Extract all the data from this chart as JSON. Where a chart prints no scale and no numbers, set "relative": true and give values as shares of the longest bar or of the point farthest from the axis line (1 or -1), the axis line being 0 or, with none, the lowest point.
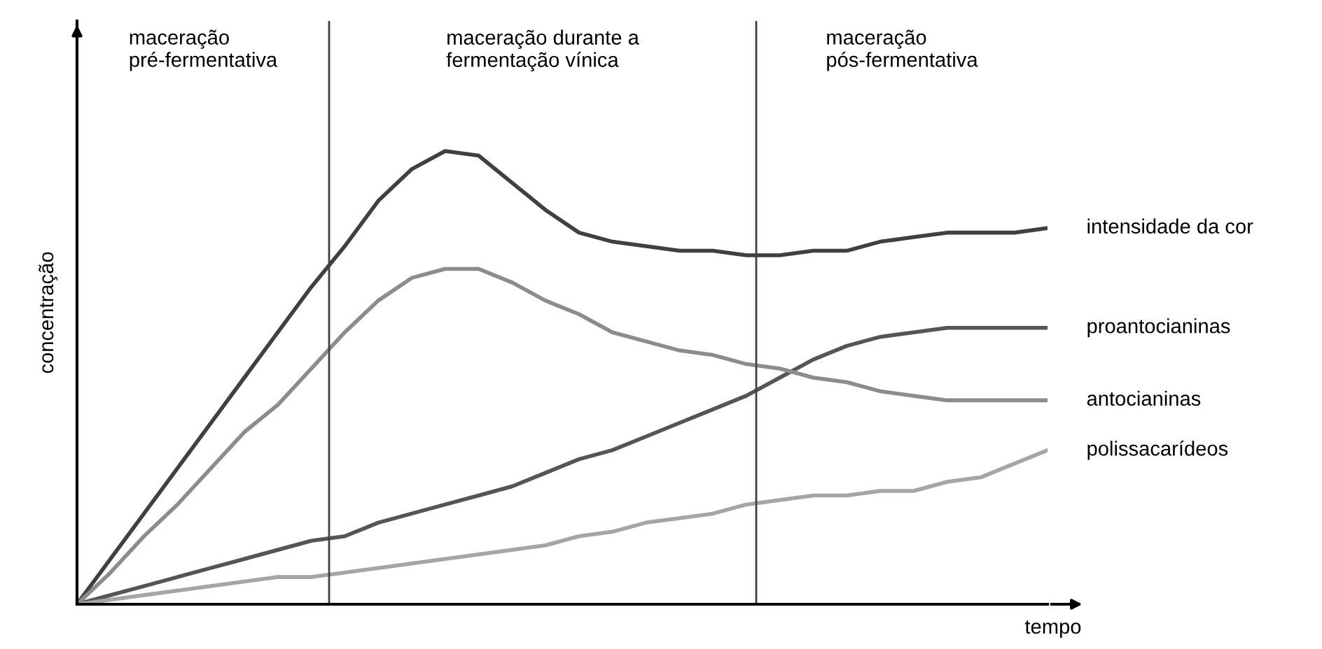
{
  "chart_data": {
    "type": "line",
    "relative": true,
    "xlabel": "tempo",
    "ylabel": "concentração",
    "categories": [
      null,
      null,
      null,
      null,
      null,
      null,
      null,
      null,
      null,
      null,
      null,
      null,
      null,
      null,
      null,
      null,
      null,
      null,
      null,
      null,
      null,
      null,
      null,
      null,
      null,
      null,
      null,
      null,
      null,
      null
    ],
    "series": [
      {
        "name": "intensidade da cor",
        "color": "#404040",
        "values": [
          0,
          0.1,
          0.2,
          0.3,
          0.4,
          0.5,
          0.6,
          0.7,
          0.79,
          0.89,
          0.96,
          1.0,
          0.99,
          0.93,
          0.87,
          0.82,
          0.8,
          0.79,
          0.78,
          0.78,
          0.77,
          0.77,
          0.78,
          0.78,
          0.8,
          0.81,
          0.82,
          0.82,
          0.82,
          0.83
        ]
      },
      {
        "name": "proantocianinas",
        "color": "#555555",
        "values": [
          0,
          0.02,
          0.04,
          0.06,
          0.08,
          0.1,
          0.12,
          0.14,
          0.15,
          0.18,
          0.2,
          0.22,
          0.24,
          0.26,
          0.29,
          0.32,
          0.34,
          0.37,
          0.4,
          0.43,
          0.46,
          0.5,
          0.54,
          0.57,
          0.59,
          0.6,
          0.61,
          0.61,
          0.61,
          0.61
        ]
      },
      {
        "name": "antocianinas",
        "color": "#8c8c8c",
        "values": [
          0,
          0.07,
          0.15,
          0.22,
          0.3,
          0.38,
          0.44,
          0.52,
          0.6,
          0.67,
          0.72,
          0.74,
          0.74,
          0.71,
          0.67,
          0.64,
          0.6,
          0.58,
          0.56,
          0.55,
          0.53,
          0.52,
          0.5,
          0.49,
          0.47,
          0.46,
          0.45,
          0.45,
          0.45,
          0.45
        ]
      },
      {
        "name": "polissacarídeos",
        "color": "#a5a5a5",
        "values": [
          0,
          0.01,
          0.02,
          0.03,
          0.04,
          0.05,
          0.06,
          0.06,
          0.07,
          0.08,
          0.09,
          0.1,
          0.11,
          0.12,
          0.13,
          0.15,
          0.16,
          0.18,
          0.19,
          0.2,
          0.22,
          0.23,
          0.24,
          0.24,
          0.25,
          0.25,
          0.27,
          0.28,
          0.31,
          0.34
        ]
      }
    ],
    "annotations": [
      "maceração\npré-fermentativa",
      "maceração durante a\nfermentação vínica",
      "maceração\npós-fermentativa"
    ],
    "legend": false,
    "marker": "none",
    "line_style": "solid"
  }
}
